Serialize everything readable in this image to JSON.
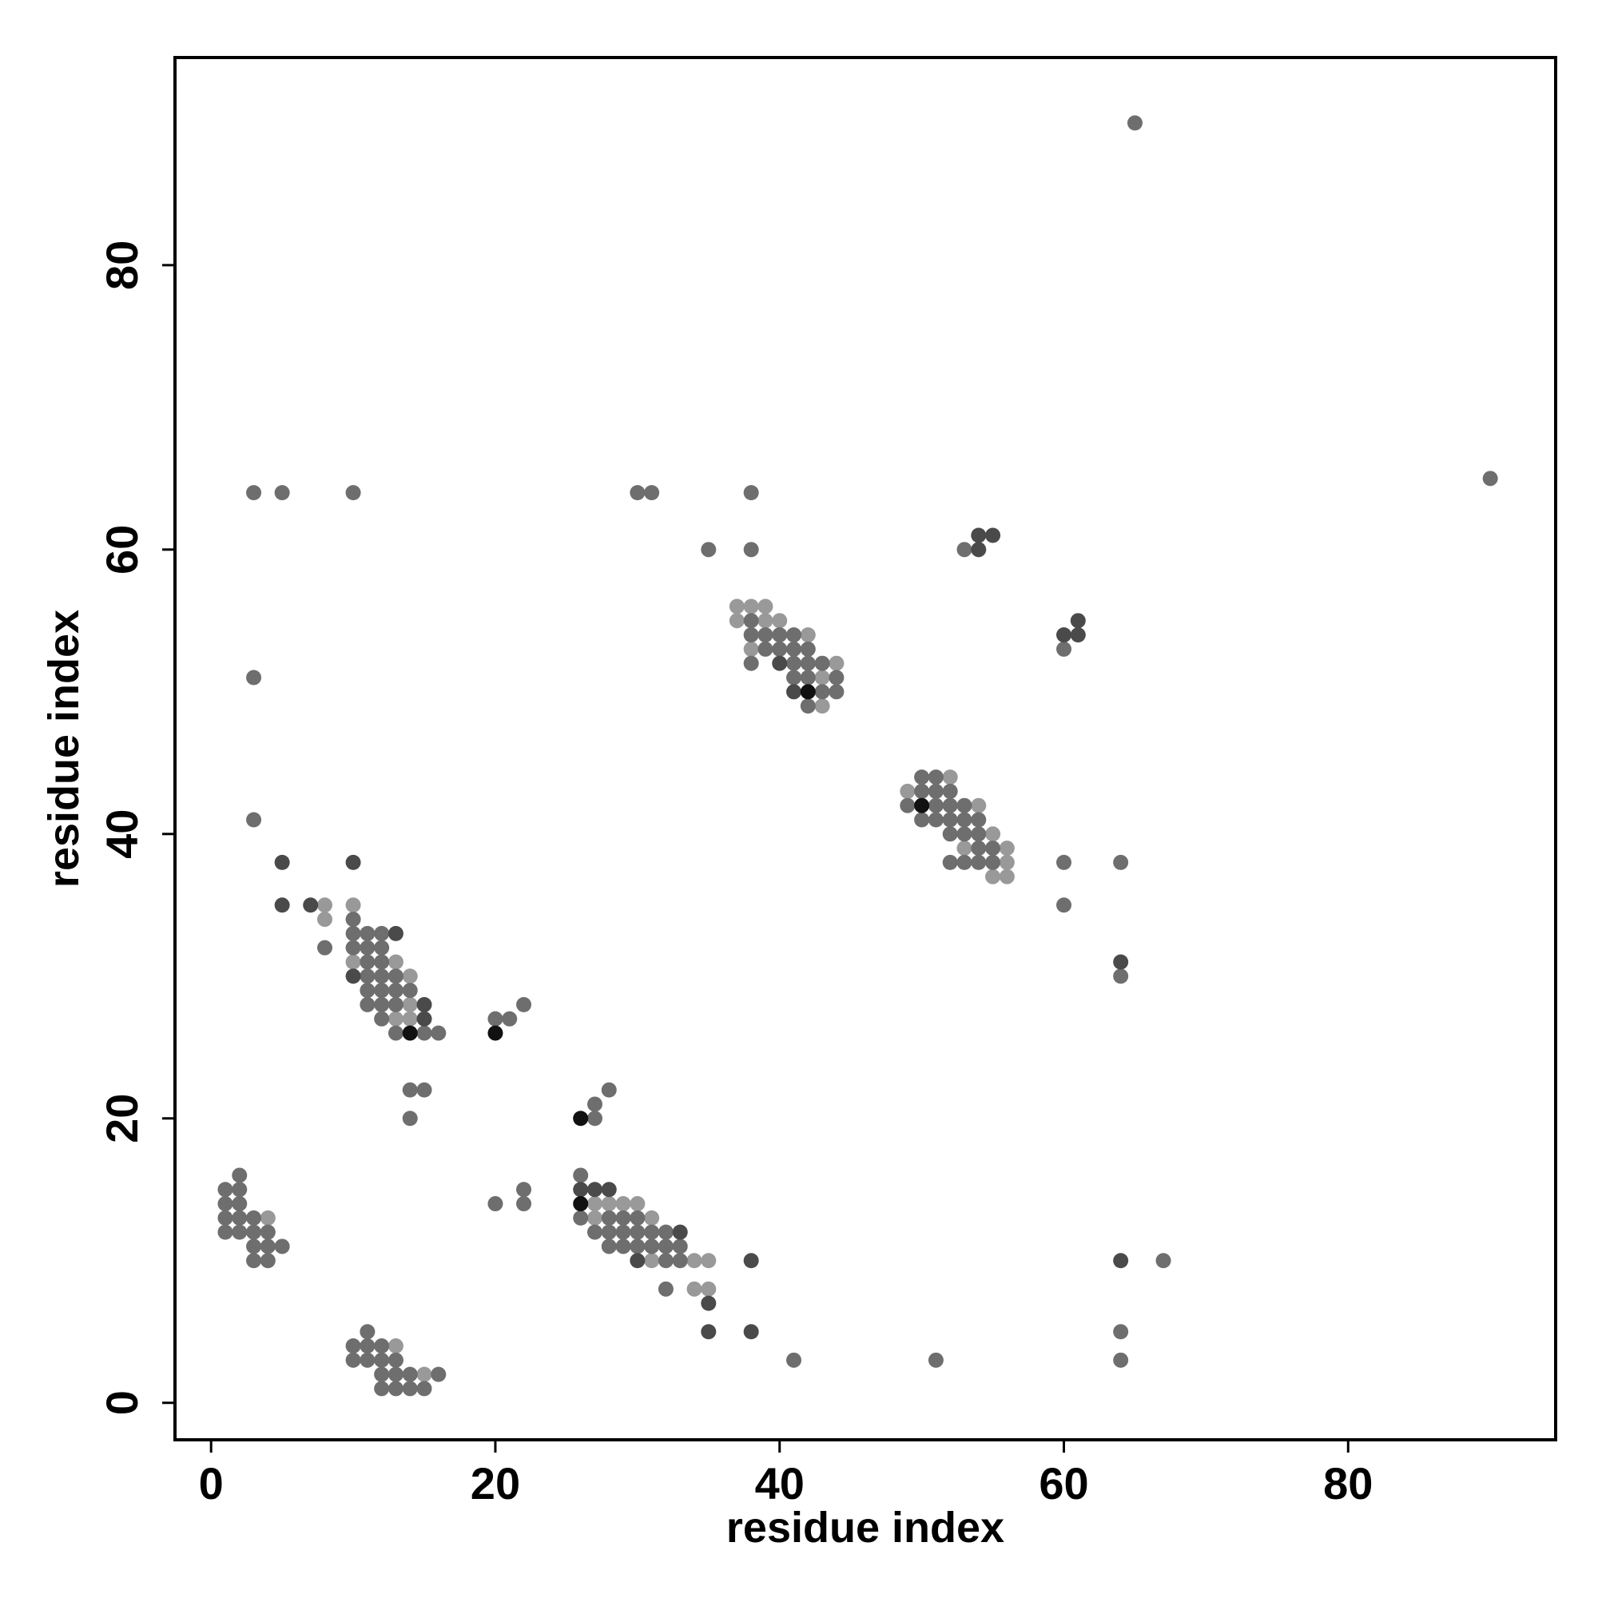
{
  "chart_data": {
    "type": "scatter",
    "xlabel": "residue index",
    "ylabel": "residue index",
    "xlim": [
      -2.54,
      94.6
    ],
    "ylim": [
      -2.6,
      94.6
    ],
    "xticks": [
      0,
      20,
      40,
      60,
      80
    ],
    "yticks": [
      0,
      20,
      40,
      60,
      80
    ],
    "series": [
      {
        "color": "#999999",
        "x": [
          37,
          38,
          39,
          37,
          39,
          40,
          42,
          38,
          44,
          43,
          43,
          52,
          49,
          54,
          55,
          53,
          56,
          56,
          55,
          56,
          8,
          10,
          8,
          10,
          13,
          14,
          14,
          13,
          14,
          27,
          28,
          29,
          30,
          4,
          27,
          31,
          31,
          34,
          35,
          34,
          35,
          13,
          15
        ],
        "values": [
          56,
          56,
          56,
          55,
          55,
          55,
          54,
          53,
          52,
          51,
          49,
          44,
          43,
          42,
          40,
          39,
          39,
          38,
          37,
          37,
          35,
          35,
          34,
          31,
          31,
          30,
          28,
          27,
          27,
          14,
          14,
          14,
          14,
          13,
          13,
          13,
          10,
          10,
          10,
          8,
          8,
          4,
          2
        ]
      },
      {
        "color": "#6e6e6e",
        "x": [
          65,
          90,
          67,
          3,
          5,
          10,
          30,
          31,
          38,
          35,
          38,
          53,
          60,
          38,
          38,
          39,
          40,
          41,
          39,
          40,
          41,
          42,
          38,
          41,
          42,
          43,
          3,
          41,
          42,
          44,
          43,
          44,
          42,
          50,
          51,
          50,
          51,
          52,
          49,
          51,
          52,
          53,
          3,
          50,
          51,
          52,
          53,
          54,
          52,
          53,
          54,
          54,
          55,
          52,
          53,
          54,
          55,
          60,
          64,
          60,
          10,
          10,
          11,
          12,
          8,
          10,
          11,
          12,
          11,
          12,
          11,
          12,
          13,
          64,
          11,
          12,
          13,
          14,
          11,
          12,
          13,
          22,
          12,
          20,
          21,
          13,
          15,
          16,
          14,
          15,
          28,
          27,
          14,
          27,
          2,
          26,
          1,
          2,
          22,
          1,
          2,
          20,
          22,
          1,
          2,
          3,
          26,
          28,
          29,
          30,
          1,
          2,
          3,
          4,
          27,
          28,
          29,
          30,
          31,
          32,
          3,
          4,
          5,
          28,
          29,
          30,
          31,
          32,
          33,
          3,
          4,
          32,
          33,
          32,
          11,
          64,
          10,
          11,
          12,
          10,
          11,
          12,
          13,
          41,
          51,
          64,
          12,
          13,
          14,
          16,
          12,
          13,
          14,
          15
        ],
        "values": [
          90,
          65,
          10,
          64,
          64,
          64,
          64,
          64,
          64,
          60,
          60,
          60,
          53,
          55,
          54,
          54,
          54,
          54,
          53,
          53,
          53,
          53,
          52,
          52,
          52,
          52,
          51,
          51,
          51,
          51,
          50,
          50,
          49,
          44,
          44,
          43,
          43,
          43,
          42,
          42,
          42,
          42,
          41,
          41,
          41,
          41,
          41,
          41,
          40,
          40,
          40,
          39,
          39,
          38,
          38,
          38,
          38,
          38,
          38,
          35,
          34,
          33,
          33,
          33,
          32,
          32,
          32,
          32,
          31,
          31,
          30,
          30,
          30,
          30,
          29,
          29,
          29,
          29,
          28,
          28,
          28,
          28,
          27,
          27,
          27,
          26,
          26,
          26,
          22,
          22,
          22,
          21,
          20,
          20,
          16,
          16,
          15,
          15,
          15,
          14,
          14,
          14,
          14,
          13,
          13,
          13,
          13,
          13,
          13,
          13,
          12,
          12,
          12,
          12,
          12,
          12,
          12,
          12,
          12,
          12,
          11,
          11,
          11,
          11,
          11,
          11,
          11,
          11,
          11,
          10,
          10,
          10,
          10,
          8,
          5,
          5,
          4,
          4,
          4,
          3,
          3,
          3,
          3,
          3,
          3,
          3,
          2,
          2,
          2,
          2,
          1,
          1,
          1,
          1
        ]
      },
      {
        "color": "#4a4a4a",
        "x": [
          54,
          55,
          54,
          61,
          60,
          61,
          40,
          41,
          5,
          10,
          5,
          7,
          13,
          64,
          10,
          15,
          15,
          26,
          27,
          28,
          33,
          30,
          38,
          64,
          35,
          35,
          38
        ],
        "values": [
          61,
          61,
          60,
          55,
          54,
          54,
          52,
          50,
          38,
          38,
          35,
          35,
          33,
          31,
          30,
          28,
          27,
          15,
          15,
          15,
          12,
          10,
          10,
          10,
          7,
          5,
          5
        ]
      },
      {
        "color": "#111111",
        "x": [
          42,
          50,
          14,
          20,
          26,
          26
        ],
        "values": [
          50,
          42,
          26,
          26,
          20,
          14
        ]
      }
    ]
  }
}
